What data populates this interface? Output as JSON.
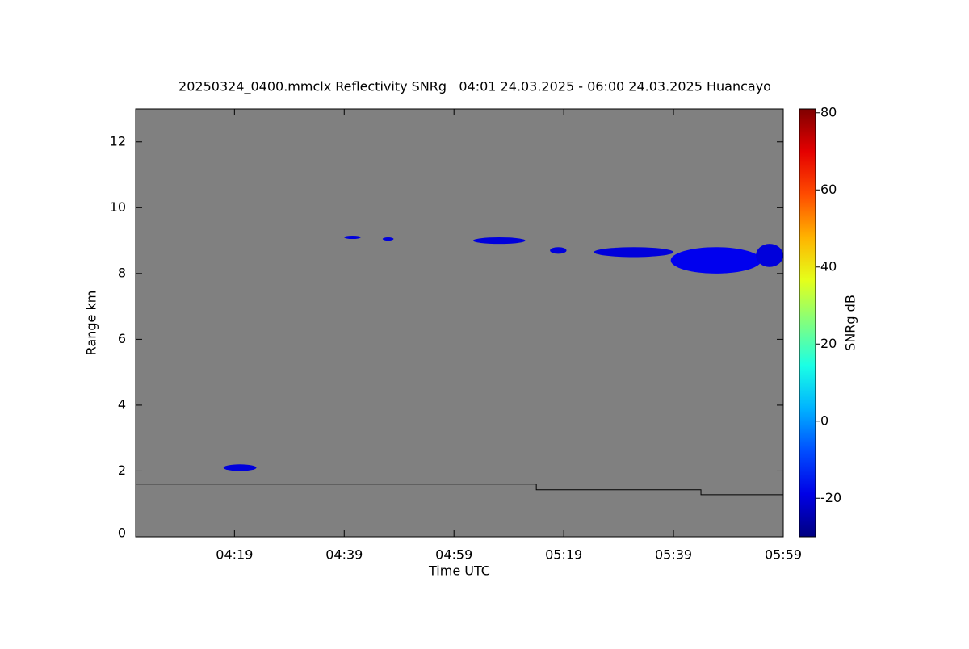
{
  "chart_data": {
    "type": "time-height",
    "title": "20250324_0400.mmclx Reflectivity SNRg   04:01 24.03.2025 - 06:00 24.03.2025 Huancayo",
    "x_label": "Time UTC",
    "y_label": "Range km",
    "colorbar_label": "SNRg dB",
    "background": "#808080",
    "colormap": "jet",
    "xlim": [
      1,
      119
    ],
    "xticks": [
      {
        "value": 19,
        "label": "04:19"
      },
      {
        "value": 39,
        "label": "04:39"
      },
      {
        "value": 59,
        "label": "04:59"
      },
      {
        "value": 79,
        "label": "05:19"
      },
      {
        "value": 99,
        "label": "05:39"
      },
      {
        "value": 119,
        "label": "05:59"
      }
    ],
    "ylim": [
      0,
      13
    ],
    "yticks": [
      0,
      2,
      4,
      6,
      8,
      10,
      12
    ],
    "clim": [
      -30,
      81
    ],
    "cticks": [
      -20,
      0,
      20,
      40,
      60,
      80
    ],
    "cells": [
      {
        "x": [
          17,
          23
        ],
        "y": [
          2.0,
          2.2
        ],
        "value": -20
      },
      {
        "x": [
          39,
          42
        ],
        "y": [
          9.05,
          9.15
        ],
        "value": -20
      },
      {
        "x": [
          46,
          48
        ],
        "y": [
          9.0,
          9.1
        ],
        "value": -20
      },
      {
        "x": [
          62.5,
          72
        ],
        "y": [
          8.9,
          9.1
        ],
        "value": -20
      },
      {
        "x": [
          76.5,
          79.5
        ],
        "y": [
          8.6,
          8.8
        ],
        "value": -20
      },
      {
        "x": [
          84.5,
          99
        ],
        "y": [
          8.5,
          8.8
        ],
        "value": -20
      },
      {
        "x": [
          98.5,
          115
        ],
        "y": [
          8.0,
          8.8
        ],
        "value": -18
      },
      {
        "x": [
          114,
          119
        ],
        "y": [
          8.2,
          8.9
        ],
        "value": -20
      }
    ],
    "series": [
      {
        "x": [
          1,
          74,
          74,
          104,
          104,
          119
        ],
        "values": [
          1.6,
          1.6,
          1.43,
          1.43,
          1.28,
          1.28
        ],
        "color": "#000000"
      }
    ]
  }
}
